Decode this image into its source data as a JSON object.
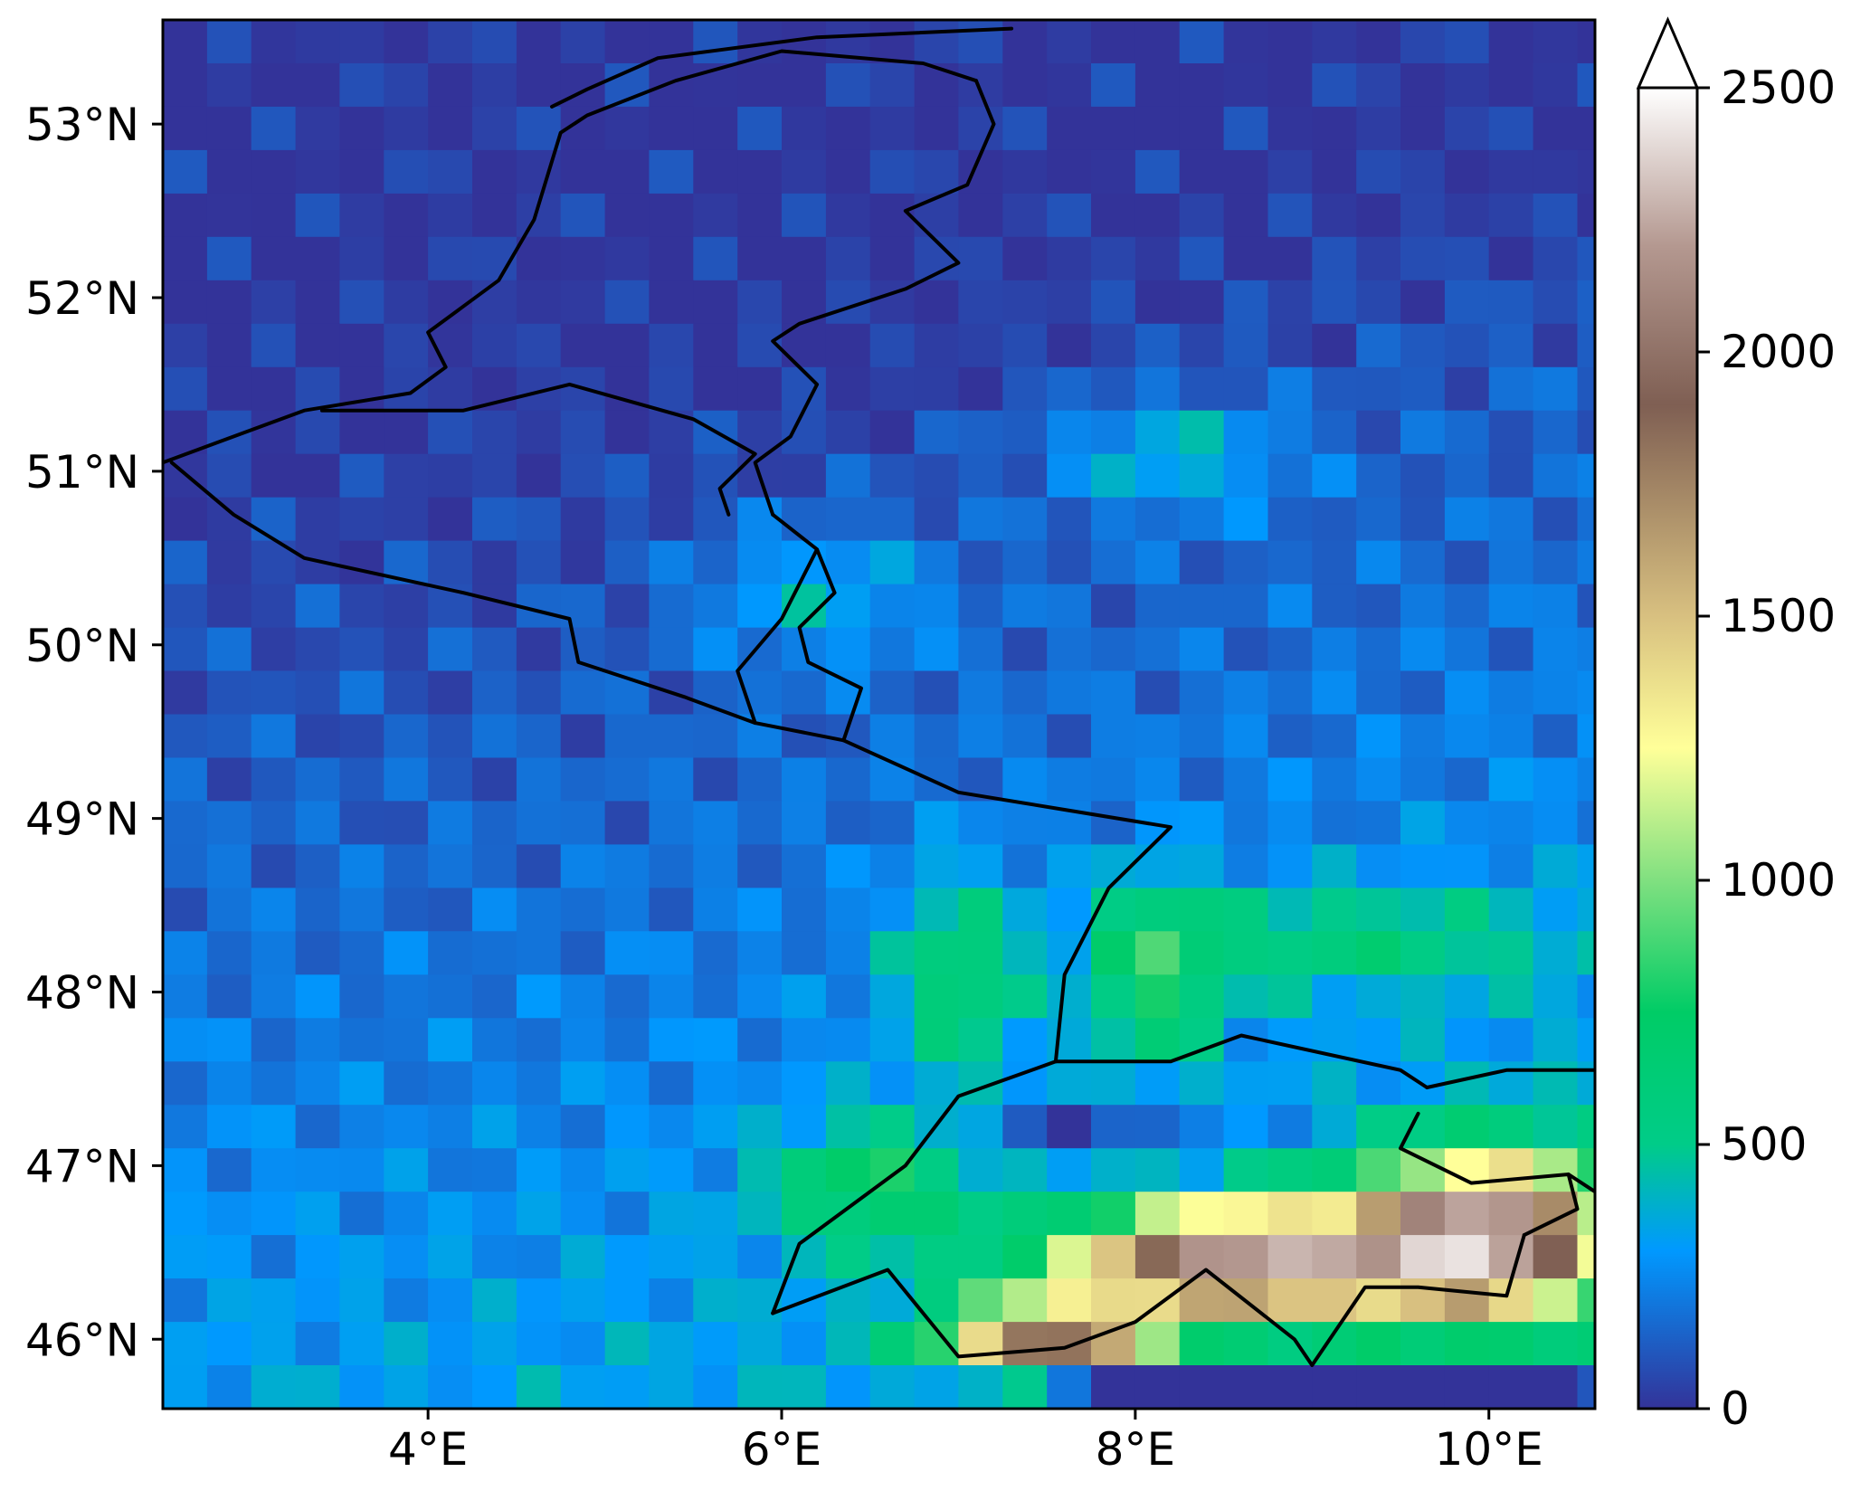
{
  "map": {
    "lon_range": [
      2.5,
      10.6
    ],
    "lat_range": [
      45.6,
      53.6
    ],
    "x_ticks": [
      {
        "value": 4,
        "label": "4°E"
      },
      {
        "value": 6,
        "label": "6°E"
      },
      {
        "value": 8,
        "label": "8°E"
      },
      {
        "value": 10,
        "label": "10°E"
      }
    ],
    "y_ticks": [
      {
        "value": 53,
        "label": "53°N"
      },
      {
        "value": 52,
        "label": "52°N"
      },
      {
        "value": 51,
        "label": "51°N"
      },
      {
        "value": 50,
        "label": "50°N"
      },
      {
        "value": 49,
        "label": "49°N"
      },
      {
        "value": 48,
        "label": "48°N"
      },
      {
        "value": 47,
        "label": "47°N"
      },
      {
        "value": 46,
        "label": "46°N"
      }
    ],
    "field": "gridded raster, 0.25° cells, value increases from the flat north-west to the Alps in the south-east",
    "borders": "country boundaries and coastline drawn as black lines"
  },
  "colorbar": {
    "range": [
      0,
      2500
    ],
    "extend": "max",
    "ticks": [
      {
        "value": 2500,
        "label": "2500"
      },
      {
        "value": 2000,
        "label": "2000"
      },
      {
        "value": 1500,
        "label": "1500"
      },
      {
        "value": 1000,
        "label": "1000"
      },
      {
        "value": 500,
        "label": "500"
      },
      {
        "value": 0,
        "label": "0"
      }
    ],
    "colormap_stops": [
      {
        "value": 0,
        "color": "#333399"
      },
      {
        "value": 300,
        "color": "#0099ff"
      },
      {
        "value": 500,
        "color": "#00cc88"
      },
      {
        "value": 750,
        "color": "#00cc66"
      },
      {
        "value": 1000,
        "color": "#80e080"
      },
      {
        "value": 1250,
        "color": "#ffff99"
      },
      {
        "value": 1500,
        "color": "#d8c080"
      },
      {
        "value": 1900,
        "color": "#7f5f53"
      },
      {
        "value": 2200,
        "color": "#b49890"
      },
      {
        "value": 2500,
        "color": "#ffffff"
      }
    ]
  },
  "colors": {
    "border_line": "#000000",
    "frame": "#000000"
  }
}
